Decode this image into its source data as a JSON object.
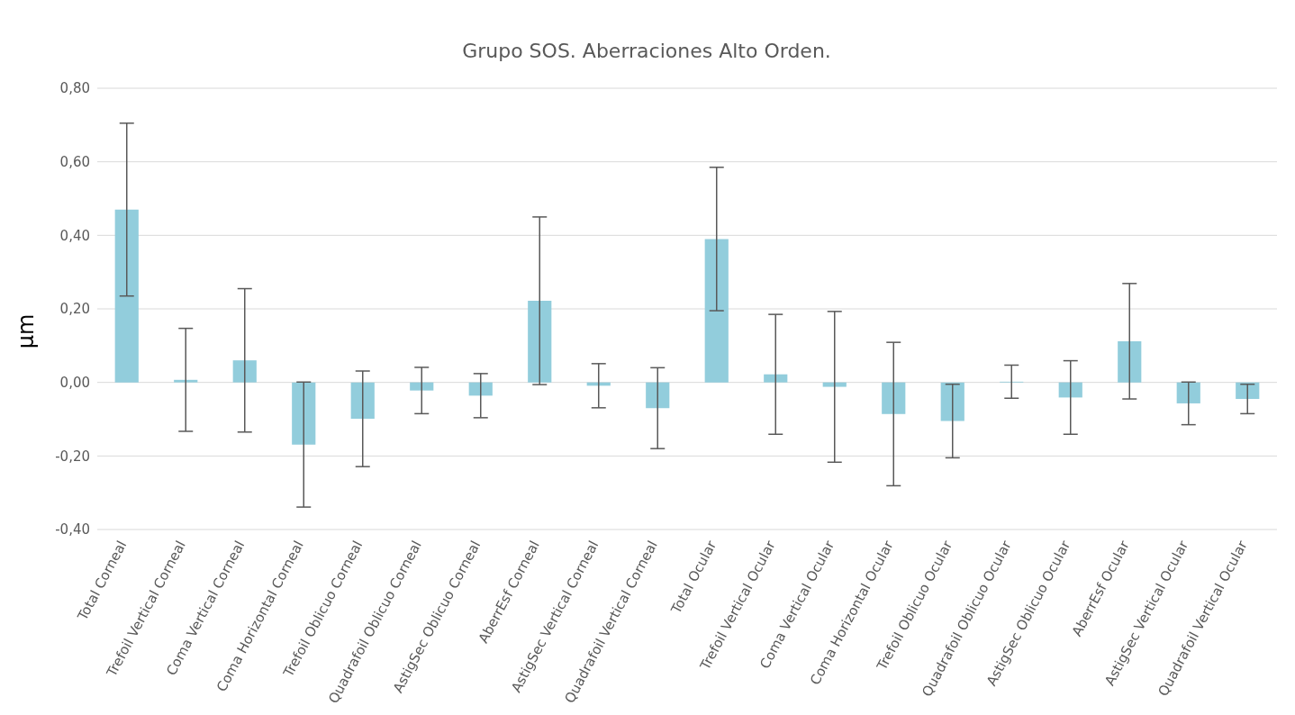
{
  "chart_data": {
    "type": "bar",
    "title": "Grupo SOS. Aberraciones Alto Orden.",
    "ylabel": "µm",
    "categories": [
      "Total Corneal",
      "Trefoil Vertical Corneal",
      "Coma Vertical Corneal",
      "Coma Horizontal Corneal",
      "Trefoil Oblicuo Corneal",
      "Quadrafoil Oblicuo Corneal",
      "AstigSec Oblicuo Corneal",
      "AberrEsf Corneal",
      "AstigSec Vertical Corneal",
      "Quadrafoil Vertical Corneal",
      "Total Ocular",
      "Trefoil Vertical Ocular",
      "Coma Vertical Ocular",
      "Coma Horizontal Ocular",
      "Trefoil Oblicuo Ocular",
      "Quadrafoil Oblicuo Ocular",
      "AstigSec Oblicuo Ocular",
      "AberrEsf Ocular",
      "AstigSec Vertical Ocular",
      "Quadrafoil Vertical Ocular"
    ],
    "values": [
      0.47,
      0.007,
      0.06,
      -0.169,
      -0.099,
      -0.022,
      -0.036,
      0.222,
      -0.009,
      -0.07,
      0.39,
      0.022,
      -0.012,
      -0.086,
      -0.105,
      0.002,
      -0.041,
      0.112,
      -0.057,
      -0.045
    ],
    "errors": [
      0.235,
      0.14,
      0.195,
      0.17,
      0.13,
      0.063,
      0.06,
      0.228,
      0.06,
      0.11,
      0.195,
      0.163,
      0.205,
      0.195,
      0.1,
      0.045,
      0.1,
      0.157,
      0.058,
      0.04
    ],
    "color": "#92cddc",
    "ylim": [
      -0.4,
      0.8
    ],
    "yticks": [
      {
        "value": -0.4,
        "label": "-0,40"
      },
      {
        "value": -0.2,
        "label": "-0,20"
      },
      {
        "value": 0,
        "label": "0,00"
      },
      {
        "value": 0.2,
        "label": "0,20"
      },
      {
        "value": 0.4,
        "label": "0,40"
      },
      {
        "value": 0.6,
        "label": "0,60"
      },
      {
        "value": 0.8,
        "label": "0,80"
      }
    ],
    "grid": "y"
  }
}
